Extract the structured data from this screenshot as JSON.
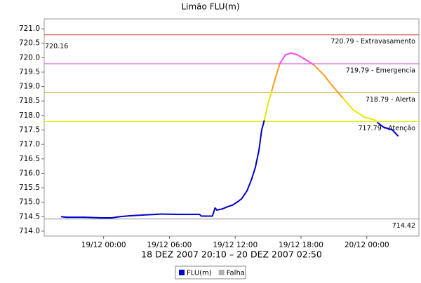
{
  "chart_data": {
    "type": "line",
    "title": "Limão FLU(m)",
    "x_label": "18 DEZ 2007 20:10 – 20 DEZ 2007 02:50",
    "xlim": [
      "18/12 18:35",
      "20/12 04:45"
    ],
    "xticks": [
      "19/12 00:00",
      "19/12 06:00",
      "19/12 12:00",
      "19/12 18:00",
      "20/12 00:00"
    ],
    "ylim": [
      713.83,
      721.34
    ],
    "yticks": [
      {
        "value": 714,
        "label": "714.0"
      },
      {
        "value": 714.5,
        "label": "714.5"
      },
      {
        "value": 715,
        "label": "715.0"
      },
      {
        "value": 715.5,
        "label": "715.5"
      },
      {
        "value": 716,
        "label": "716.0"
      },
      {
        "value": 716.5,
        "label": "716.5"
      },
      {
        "value": 717,
        "label": "717.0"
      },
      {
        "value": 717.5,
        "label": "717.5"
      },
      {
        "value": 718,
        "label": "718.0"
      },
      {
        "value": 718.5,
        "label": "718.5"
      },
      {
        "value": 719,
        "label": "719.0"
      },
      {
        "value": 719.5,
        "label": "719.5"
      },
      {
        "value": 720,
        "label": "720.0"
      },
      {
        "value": 720.5,
        "label": "720.5"
      },
      {
        "value": 721,
        "label": "721.0"
      }
    ],
    "grid": false,
    "thresholds": [
      {
        "value": 720.79,
        "label": "720.79 - Extravasamento",
        "color": "#cc3333",
        "trace_color": "#ff0000"
      },
      {
        "value": 719.79,
        "label": "719.79 - Emergencia",
        "color": "#cc44cc",
        "trace_color": "#ff44ff"
      },
      {
        "value": 718.79,
        "label": "718.79 - Alerta",
        "color": "#cc9900",
        "trace_color": "#ff9922"
      },
      {
        "value": 717.79,
        "label": "717.79 - Atenção",
        "color": "#eeee00",
        "trace_color": "#e8e800"
      }
    ],
    "min_line": {
      "value": 714.42,
      "color": "#888888"
    },
    "max_value": 720.16,
    "series": [
      {
        "name": "FLU(m)",
        "color": "#0000cc",
        "x": [
          "18/12 20:10",
          "18/12 20:35",
          "18/12 22:15",
          "18/12 23:50",
          "19/12 00:45",
          "19/12 01:25",
          "19/12 02:20",
          "19/12 03:40",
          "19/12 05:15",
          "19/12 07:10",
          "19/12 08:45",
          "19/12 08:55",
          "19/12 09:55",
          "19/12 10:10",
          "19/12 10:20",
          "19/12 10:50",
          "19/12 11:20",
          "19/12 11:45",
          "19/12 12:10",
          "19/12 12:35",
          "19/12 13:05",
          "19/12 13:30",
          "19/12 13:50",
          "19/12 14:10",
          "19/12 14:25",
          "19/12 14:40",
          "19/12 14:55",
          "19/12 15:20",
          "19/12 15:40",
          "19/12 16:05",
          "19/12 16:35",
          "19/12 17:05",
          "19/12 17:40",
          "19/12 18:20",
          "19/12 19:10",
          "19/12 20:05",
          "19/12 20:55",
          "19/12 21:50",
          "19/12 22:45",
          "19/12 23:45",
          "20/12 00:40",
          "20/12 01:00",
          "20/12 01:30",
          "20/12 02:20",
          "20/12 02:50"
        ],
        "values": [
          714.5,
          714.48,
          714.48,
          714.46,
          714.46,
          714.5,
          714.53,
          714.56,
          714.59,
          714.58,
          714.58,
          714.52,
          714.52,
          714.8,
          714.73,
          714.77,
          714.85,
          714.9,
          715.0,
          715.12,
          715.4,
          715.8,
          716.2,
          716.8,
          717.5,
          717.85,
          718.3,
          718.85,
          719.3,
          719.8,
          720.1,
          720.16,
          720.1,
          719.95,
          719.75,
          719.4,
          719.0,
          718.6,
          718.2,
          717.95,
          717.85,
          717.75,
          717.6,
          717.5,
          717.3
        ]
      },
      {
        "name": "Falha",
        "color": "#b0b0b0",
        "x": [],
        "values": []
      }
    ]
  }
}
